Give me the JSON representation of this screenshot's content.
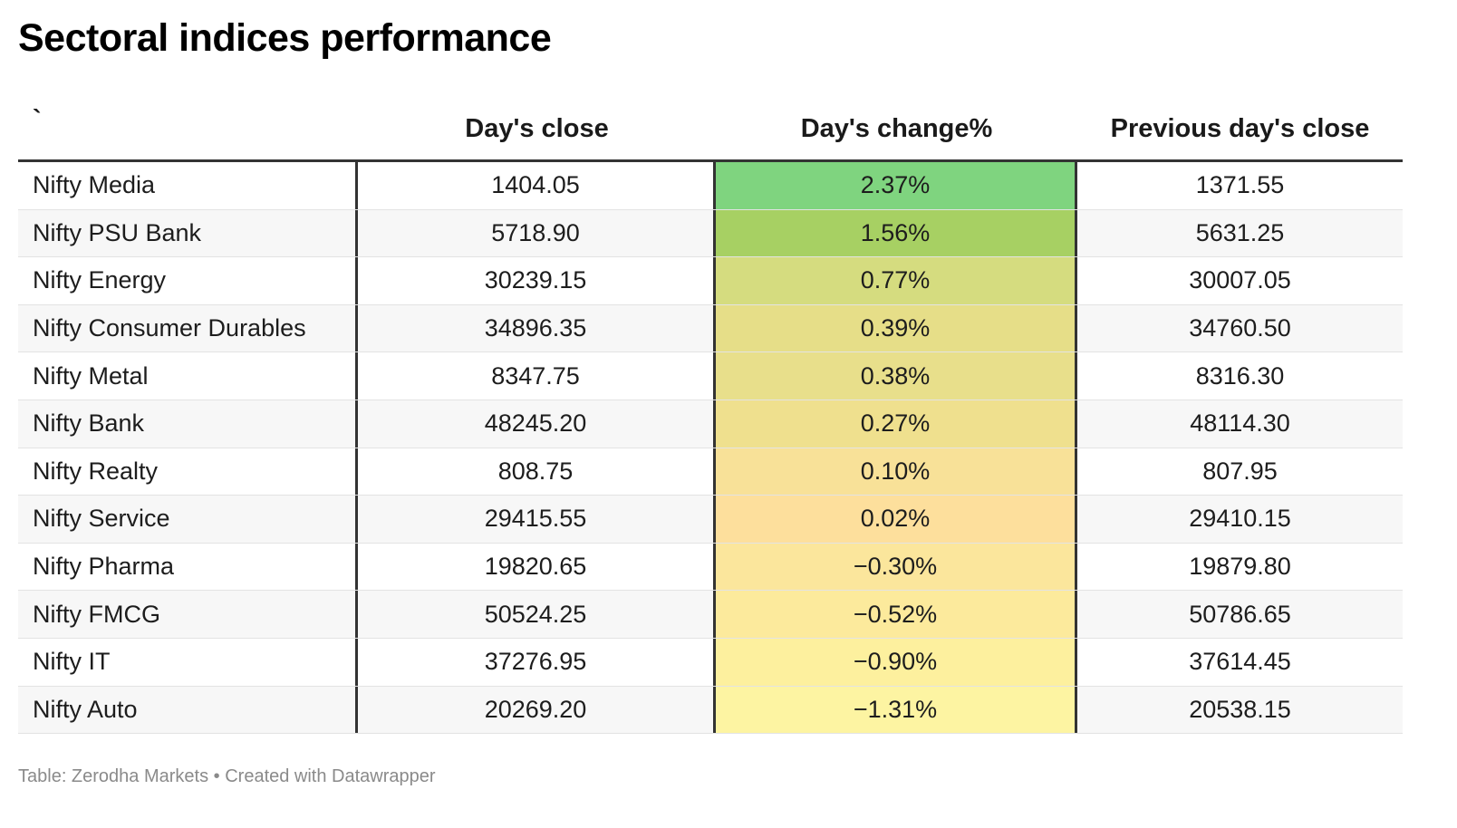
{
  "title": "Sectoral indices performance",
  "footer": "Table: Zerodha Markets • Created with Datawrapper",
  "chart_data": {
    "type": "table",
    "columns": [
      "`",
      "Day's close",
      "Day's change%",
      "Previous day's close"
    ],
    "rows": [
      {
        "name": "Nifty Media",
        "close": "1404.05",
        "change": "2.37%",
        "prev": "1371.55",
        "change_value": 2.37,
        "color": "#7fd47f"
      },
      {
        "name": "Nifty PSU Bank",
        "close": "5718.90",
        "change": "1.56%",
        "prev": "5631.25",
        "change_value": 1.56,
        "color": "#a7d063"
      },
      {
        "name": "Nifty Energy",
        "close": "30239.15",
        "change": "0.77%",
        "prev": "30007.05",
        "change_value": 0.77,
        "color": "#d5dc7f"
      },
      {
        "name": "Nifty Consumer Durables",
        "close": "34896.35",
        "change": "0.39%",
        "prev": "34760.50",
        "change_value": 0.39,
        "color": "#e6de88"
      },
      {
        "name": "Nifty Metal",
        "close": "8347.75",
        "change": "0.38%",
        "prev": "8316.30",
        "change_value": 0.38,
        "color": "#e8df8b"
      },
      {
        "name": "Nifty Bank",
        "close": "48245.20",
        "change": "0.27%",
        "prev": "48114.30",
        "change_value": 0.27,
        "color": "#efe08e"
      },
      {
        "name": "Nifty Realty",
        "close": "808.75",
        "change": "0.10%",
        "prev": "807.95",
        "change_value": 0.1,
        "color": "#f8e198"
      },
      {
        "name": "Nifty Service",
        "close": "29415.55",
        "change": "0.02%",
        "prev": "29410.15",
        "change_value": 0.02,
        "color": "#fddf9c"
      },
      {
        "name": "Nifty Pharma",
        "close": "19820.65",
        "change": "−0.30%",
        "prev": "19879.80",
        "change_value": -0.3,
        "color": "#fbe69c"
      },
      {
        "name": "Nifty FMCG",
        "close": "50524.25",
        "change": "−0.52%",
        "prev": "50786.65",
        "change_value": -0.52,
        "color": "#fcea9c"
      },
      {
        "name": "Nifty IT",
        "close": "37276.95",
        "change": "−0.90%",
        "prev": "37614.45",
        "change_value": -0.9,
        "color": "#fdf09e"
      },
      {
        "name": "Nifty Auto",
        "close": "20269.20",
        "change": "−1.31%",
        "prev": "20538.15",
        "change_value": -1.31,
        "color": "#fdf4a2"
      }
    ]
  }
}
